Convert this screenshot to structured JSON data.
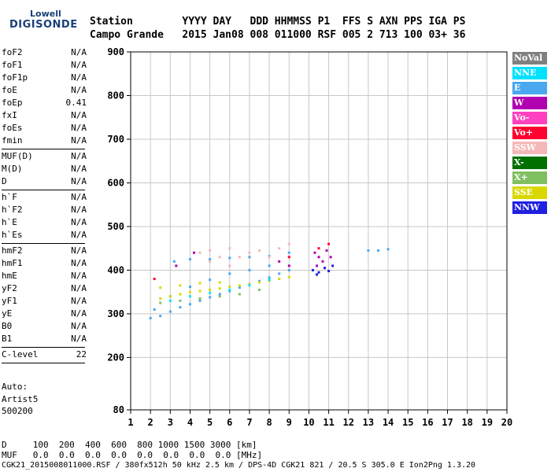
{
  "logo": {
    "line1": "Lowell",
    "line2": "DIGISONDE"
  },
  "header": {
    "labels_row": "Station        YYYY DAY   DDD HHMMSS P1  FFS S AXN PPS IGA PS",
    "values_row": "Campo Grande   2015 Jan08 008 011000 RSF 005 2 713 100 03+ 36"
  },
  "params": [
    {
      "label": "foF2",
      "value": "N/A"
    },
    {
      "label": "foF1",
      "value": "N/A"
    },
    {
      "label": "foF1p",
      "value": "N/A"
    },
    {
      "label": "foE",
      "value": "N/A"
    },
    {
      "label": "foEp",
      "value": "0.41"
    },
    {
      "label": "fxI",
      "value": "N/A"
    },
    {
      "label": "foEs",
      "value": "N/A"
    },
    {
      "label": "fmin",
      "value": "N/A"
    },
    {
      "label": "MUF(D)",
      "value": "N/A"
    },
    {
      "label": "M(D)",
      "value": "N/A"
    },
    {
      "label": "D",
      "value": "N/A"
    },
    {
      "label": "h`F",
      "value": "N/A"
    },
    {
      "label": "h`F2",
      "value": "N/A"
    },
    {
      "label": "h`E",
      "value": "N/A"
    },
    {
      "label": "h`Es",
      "value": "N/A"
    },
    {
      "label": "hmF2",
      "value": "N/A"
    },
    {
      "label": "hmF1",
      "value": "N/A"
    },
    {
      "label": "hmE",
      "value": "N/A"
    },
    {
      "label": "yF2",
      "value": "N/A"
    },
    {
      "label": "yF1",
      "value": "N/A"
    },
    {
      "label": "yE",
      "value": "N/A"
    },
    {
      "label": "B0",
      "value": "N/A"
    },
    {
      "label": "B1",
      "value": "N/A"
    },
    {
      "label": "C-level",
      "value": "22"
    }
  ],
  "auto": {
    "line1": "Auto:",
    "line2": "Artist5",
    "line3": "500200"
  },
  "bottom": {
    "d_row": "D     100  200  400  600  800 1000 1500 3000 [km]",
    "muf_row": "MUF   0.0  0.0  0.0  0.0  0.0  0.0  0.0  0.0 [MHz]",
    "footer": "CGK21_2015008011000.RSF / 380fx512h 50 kHz 2.5 km / DPS-4D CGK21 821 / 20.5 S 305.0 E Ion2Png 1.3.20"
  },
  "legend": [
    {
      "label": "NoVal",
      "color": "#808080"
    },
    {
      "label": "NNE",
      "color": "#00e0ff"
    },
    {
      "label": "E",
      "color": "#4aa8f0"
    },
    {
      "label": "W",
      "color": "#b000b0"
    },
    {
      "label": "Vo-",
      "color": "#ff40c0"
    },
    {
      "label": "Vo+",
      "color": "#ff0030"
    },
    {
      "label": "SSW",
      "color": "#f4b8b8"
    },
    {
      "label": "X-",
      "color": "#007000"
    },
    {
      "label": "X+",
      "color": "#80c060"
    },
    {
      "label": "SSE",
      "color": "#d8d800"
    },
    {
      "label": "NNW",
      "color": "#2020e0"
    }
  ],
  "chart_data": {
    "type": "scatter",
    "xlabel": "",
    "ylabel": "",
    "xlim": [
      1,
      20
    ],
    "ylim": [
      80,
      900
    ],
    "x_ticks": [
      1,
      2,
      3,
      4,
      5,
      6,
      7,
      8,
      9,
      10,
      11,
      12,
      13,
      14,
      15,
      16,
      17,
      18,
      19,
      20
    ],
    "y_ticks": [
      80,
      200,
      300,
      400,
      500,
      600,
      700,
      800,
      900
    ],
    "grid": true,
    "series": [
      {
        "name": "E",
        "color": "#4aa8f0",
        "points": [
          [
            2.0,
            290
          ],
          [
            2.5,
            295
          ],
          [
            3.0,
            305
          ],
          [
            3.5,
            315
          ],
          [
            4.0,
            322
          ],
          [
            4.5,
            330
          ],
          [
            5.0,
            338
          ],
          [
            5.5,
            345
          ],
          [
            6.0,
            352
          ],
          [
            6.5,
            360
          ],
          [
            7.0,
            368
          ],
          [
            7.5,
            375
          ],
          [
            8.0,
            383
          ],
          [
            8.5,
            392
          ],
          [
            9.0,
            400
          ],
          [
            2.2,
            310
          ],
          [
            3.0,
            340
          ],
          [
            4.0,
            362
          ],
          [
            5.0,
            378
          ],
          [
            6.0,
            392
          ],
          [
            7.0,
            400
          ],
          [
            8.0,
            410
          ],
          [
            3.2,
            420
          ],
          [
            4.0,
            425
          ],
          [
            5.0,
            425
          ],
          [
            6.0,
            428
          ],
          [
            7.0,
            430
          ],
          [
            8.0,
            432
          ],
          [
            9.0,
            440
          ],
          [
            13.0,
            445
          ],
          [
            13.5,
            445
          ],
          [
            14.0,
            448
          ]
        ]
      },
      {
        "name": "SSE",
        "color": "#d8d800",
        "points": [
          [
            2.5,
            335
          ],
          [
            3.0,
            340
          ],
          [
            3.5,
            345
          ],
          [
            4.0,
            350
          ],
          [
            4.5,
            352
          ],
          [
            5.0,
            355
          ],
          [
            5.5,
            358
          ],
          [
            6.0,
            362
          ],
          [
            6.5,
            365
          ],
          [
            7.0,
            368
          ],
          [
            7.5,
            372
          ],
          [
            8.0,
            376
          ],
          [
            8.5,
            380
          ],
          [
            9.0,
            384
          ],
          [
            2.5,
            360
          ],
          [
            3.5,
            365
          ],
          [
            4.5,
            370
          ],
          [
            5.5,
            372
          ]
        ]
      },
      {
        "name": "SSW",
        "color": "#f4b8b8",
        "points": [
          [
            4.5,
            440
          ],
          [
            5.0,
            445
          ],
          [
            5.5,
            430
          ],
          [
            6.0,
            450
          ],
          [
            6.5,
            430
          ],
          [
            7.0,
            440
          ],
          [
            7.5,
            445
          ],
          [
            8.0,
            430
          ],
          [
            8.5,
            450
          ],
          [
            9.0,
            460
          ],
          [
            5.0,
            420
          ],
          [
            6.0,
            410
          ]
        ]
      },
      {
        "name": "W",
        "color": "#b000b0",
        "points": [
          [
            10.3,
            440
          ],
          [
            10.5,
            430
          ],
          [
            10.7,
            420
          ],
          [
            10.9,
            445
          ],
          [
            11.1,
            430
          ],
          [
            10.4,
            410
          ],
          [
            8.5,
            420
          ],
          [
            9.0,
            410
          ],
          [
            3.3,
            410
          ],
          [
            4.2,
            440
          ]
        ]
      },
      {
        "name": "NNW",
        "color": "#2020e0",
        "points": [
          [
            10.2,
            400
          ],
          [
            10.5,
            395
          ],
          [
            10.8,
            405
          ],
          [
            11.0,
            398
          ],
          [
            11.2,
            410
          ],
          [
            10.4,
            390
          ]
        ]
      },
      {
        "name": "Vo+",
        "color": "#ff0030",
        "points": [
          [
            10.5,
            450
          ],
          [
            11.0,
            460
          ],
          [
            2.2,
            380
          ],
          [
            9.0,
            430
          ]
        ]
      },
      {
        "name": "X+",
        "color": "#80c060",
        "points": [
          [
            2.5,
            325
          ],
          [
            3.5,
            330
          ],
          [
            4.5,
            335
          ],
          [
            5.5,
            340
          ],
          [
            6.5,
            345
          ],
          [
            7.5,
            355
          ]
        ]
      },
      {
        "name": "NNE",
        "color": "#00e0ff",
        "points": [
          [
            3.0,
            330
          ],
          [
            4.0,
            340
          ],
          [
            5.0,
            348
          ],
          [
            6.0,
            355
          ],
          [
            7.0,
            365
          ],
          [
            8.0,
            378
          ]
        ]
      }
    ]
  }
}
